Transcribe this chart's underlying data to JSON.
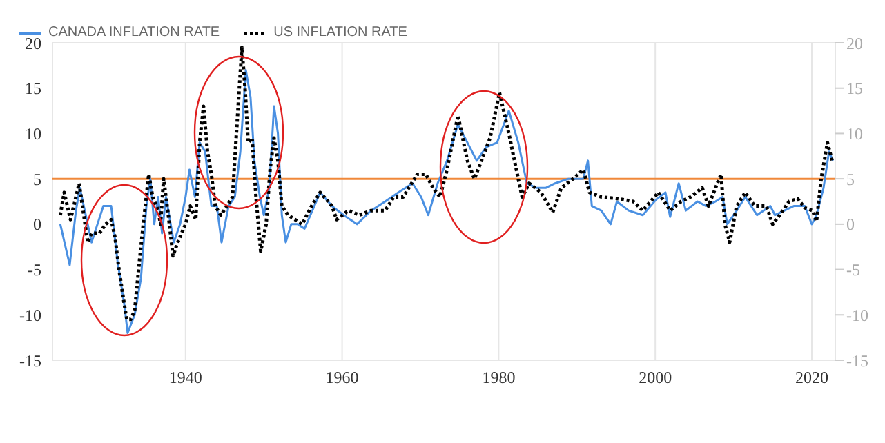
{
  "chart_data": {
    "type": "line",
    "legend": "top left",
    "grid": true,
    "xlim": [
      1923,
      2023
    ],
    "xticks": [
      1940,
      1960,
      1980,
      2000,
      2020
    ],
    "ylim": [
      -15,
      20
    ],
    "yticks": [
      -15,
      -10,
      -5,
      0,
      5,
      10,
      15,
      20
    ],
    "y2lim": [
      -15,
      20
    ],
    "y2ticks": [
      -15,
      -10,
      -5,
      0,
      5,
      10,
      15,
      20
    ],
    "ref_lines": [
      {
        "axis": "y",
        "value": 5,
        "color": "#f0883a"
      }
    ],
    "series": [
      {
        "name": "CANADA INFLATION RATE",
        "color": "#4a90e2",
        "line_style": "solid",
        "x": [
          1924,
          1925.2,
          1926,
          1926.5,
          1927,
          1928,
          1929.5,
          1930.5,
          1931.3,
          1932.2,
          1932.6,
          1933.5,
          1934.3,
          1935,
          1935.5,
          1936,
          1936.5,
          1937,
          1937.5,
          1938.5,
          1939.3,
          1940,
          1940.5,
          1941.2,
          1941.8,
          1942.5,
          1943.3,
          1944,
          1944.6,
          1945.5,
          1946.3,
          1947,
          1947.7,
          1948.3,
          1948.8,
          1949.5,
          1950,
          1950.7,
          1951.3,
          1951.8,
          1952.3,
          1952.8,
          1953.5,
          1954.3,
          1955.2,
          1957.2,
          1958.7,
          1960.2,
          1961.9,
          1963.7,
          1965.5,
          1967.2,
          1969,
          1970.1,
          1971,
          1972.2,
          1973.4,
          1974.8,
          1976,
          1977.2,
          1978.4,
          1979.8,
          1981.3,
          1982.5,
          1983.6,
          1984.8,
          1986,
          1987.2,
          1988.9,
          1990.8,
          1991.4,
          1991.9,
          1993.1,
          1994.3,
          1995.1,
          1996.6,
          1998.4,
          2000.1,
          2001.3,
          2001.9,
          2003,
          2003.9,
          2005.4,
          2006.5,
          2007.7,
          2008.6,
          2009.2,
          2010.4,
          2011.5,
          2013,
          2014.7,
          2015.3,
          2016.5,
          2017.7,
          2019.1,
          2020,
          2020.6,
          2021.5,
          2022.2,
          2022.7
        ],
        "values": [
          0,
          -4.5,
          1.5,
          4,
          2,
          -2,
          2,
          2,
          -4,
          -9,
          -12,
          -10,
          -6,
          2,
          5,
          0,
          3,
          -1,
          3,
          -2,
          0,
          3,
          6,
          3,
          9,
          8,
          2,
          2,
          -2,
          2,
          3,
          8,
          17,
          14,
          7,
          3,
          1,
          4,
          13,
          10,
          1,
          -2,
          0,
          0,
          -0.5,
          3.5,
          2,
          1,
          0,
          1.5,
          2.5,
          3.5,
          4.5,
          3,
          1,
          4.5,
          7,
          11,
          9,
          7,
          8.5,
          9,
          12.5,
          9,
          4.5,
          4,
          4,
          4.5,
          5,
          5,
          7,
          2,
          1.5,
          0,
          2.5,
          1.5,
          1,
          2.7,
          3.5,
          0.8,
          4.5,
          1.5,
          2.5,
          2,
          2.5,
          3,
          0,
          1.5,
          3,
          1,
          2,
          1,
          1.5,
          2,
          2,
          0,
          1,
          4,
          8,
          7
        ]
      },
      {
        "name": "US INFLATION RATE",
        "color": "#000000",
        "line_style": "dotted",
        "x": [
          1924,
          1924.5,
          1925.3,
          1926,
          1926.4,
          1927,
          1927.5,
          1928,
          1929,
          1929.8,
          1930.5,
          1931,
          1931.5,
          1932.2,
          1932.5,
          1933,
          1933.5,
          1934,
          1934.6,
          1935.3,
          1935.8,
          1936.5,
          1936.8,
          1937.2,
          1937.8,
          1938.4,
          1939,
          1940,
          1940.6,
          1941.3,
          1941.8,
          1942.3,
          1942.8,
          1943.3,
          1943.8,
          1944.5,
          1945.3,
          1946,
          1946.5,
          1947.2,
          1947.6,
          1948,
          1948.5,
          1949,
          1949.6,
          1950.3,
          1950.8,
          1951.3,
          1951.8,
          1952.3,
          1953.1,
          1954.9,
          1956.1,
          1957.2,
          1958.7,
          1959.3,
          1960.8,
          1962.2,
          1963.7,
          1965.5,
          1966.6,
          1967.8,
          1969.6,
          1970.7,
          1971.6,
          1972.5,
          1973.4,
          1974.8,
          1976,
          1976.9,
          1977.8,
          1978.9,
          1980.1,
          1981.3,
          1982.5,
          1983,
          1983.9,
          1985.4,
          1986.9,
          1988,
          1989.5,
          1990.8,
          1991.6,
          1993.1,
          1995.4,
          1997.2,
          1998.4,
          2000.4,
          2001.9,
          2003.3,
          2004.5,
          2006,
          2006.8,
          2007.7,
          2008.4,
          2008.9,
          2009.5,
          2010.4,
          2011.5,
          2012.7,
          2014.2,
          2015,
          2015.9,
          2017.1,
          2018.2,
          2019.1,
          2020.1,
          2020.6,
          2021.2,
          2022,
          2022.6
        ],
        "values": [
          1,
          3.5,
          0.5,
          3,
          4.5,
          1,
          -2,
          -1,
          -1,
          0,
          0.5,
          -1.5,
          -5,
          -9,
          -10.5,
          -10.5,
          -9.5,
          -5,
          0,
          5.5,
          3,
          1.5,
          0,
          5,
          1,
          -3.5,
          -2,
          0,
          2,
          0.5,
          9,
          13,
          8,
          5.5,
          2,
          1,
          2,
          3,
          10,
          19.5,
          15,
          9,
          9.5,
          3,
          -3,
          0,
          6,
          9.5,
          7,
          2,
          1,
          0,
          2,
          3.5,
          2,
          0.5,
          1.5,
          1,
          1.5,
          1.5,
          3,
          3,
          5.5,
          5.5,
          4,
          3,
          6,
          12,
          7,
          5,
          7,
          9.5,
          14.5,
          10,
          5,
          3,
          4.5,
          3.5,
          1.3,
          4,
          5,
          6,
          3.5,
          3,
          2.8,
          2.5,
          1.5,
          3.5,
          1.5,
          2.5,
          3,
          4,
          2,
          4,
          5.5,
          0,
          -2,
          2,
          3.5,
          2,
          2,
          0,
          1,
          2.5,
          2.8,
          1.8,
          1.5,
          0.3,
          5,
          9,
          7
        ]
      }
    ]
  }
}
